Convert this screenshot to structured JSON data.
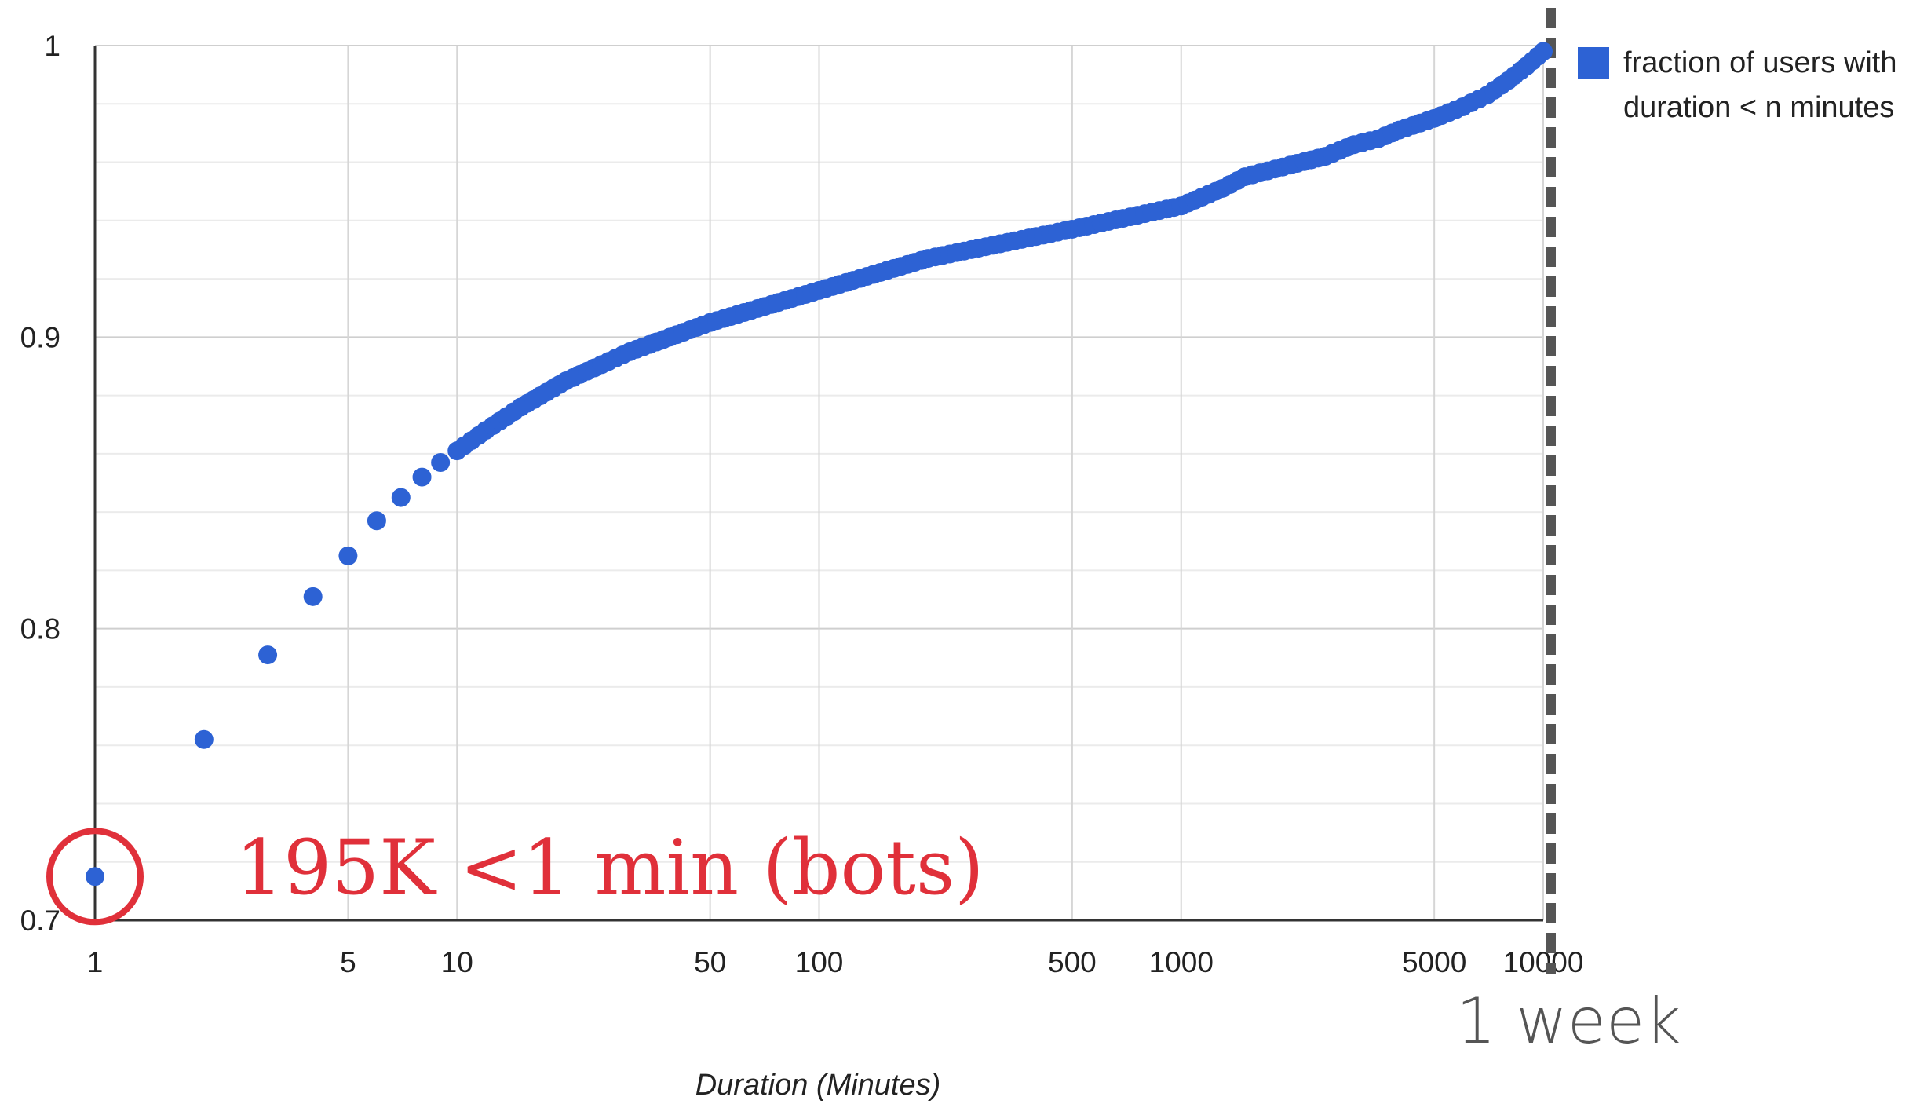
{
  "chart_data": {
    "type": "scatter",
    "title": "",
    "xlabel": "Duration (Minutes)",
    "ylabel": "",
    "x_scale": "log",
    "xlim": [
      1,
      10000
    ],
    "ylim": [
      0.7,
      1
    ],
    "y_ticks": [
      "0.7",
      "0.8",
      "0.9",
      "1"
    ],
    "x_ticks": [
      "1",
      "5",
      "10",
      "50",
      "100",
      "500",
      "1000",
      "5000",
      "10000"
    ],
    "grid": true,
    "legend_position": "top-right",
    "series": [
      {
        "name": "fraction of users with duration < n minutes",
        "color": "#2d62d4",
        "points": [
          [
            1,
            0.715
          ],
          [
            2,
            0.762
          ],
          [
            3,
            0.791
          ],
          [
            4,
            0.811
          ],
          [
            5,
            0.825
          ],
          [
            6,
            0.837
          ],
          [
            7,
            0.845
          ],
          [
            8,
            0.852
          ],
          [
            9,
            0.857
          ],
          [
            10,
            0.861
          ],
          [
            12,
            0.868
          ],
          [
            15,
            0.876
          ],
          [
            20,
            0.885
          ],
          [
            30,
            0.895
          ],
          [
            50,
            0.905
          ],
          [
            100,
            0.916
          ],
          [
            200,
            0.927
          ],
          [
            500,
            0.937
          ],
          [
            1000,
            0.945
          ],
          [
            1300,
            0.951
          ],
          [
            1500,
            0.955
          ],
          [
            2000,
            0.959
          ],
          [
            2500,
            0.962
          ],
          [
            3000,
            0.966
          ],
          [
            3500,
            0.968
          ],
          [
            4000,
            0.971
          ],
          [
            5000,
            0.975
          ],
          [
            6000,
            0.979
          ],
          [
            7000,
            0.983
          ],
          [
            8000,
            0.988
          ],
          [
            9000,
            0.993
          ],
          [
            10000,
            0.998
          ]
        ]
      }
    ],
    "legend_lines": [
      "fraction of users with",
      "duration < n minutes"
    ],
    "annotations": [
      {
        "text": "195K <1 min (bots)",
        "x": 1,
        "y": 0.715,
        "color": "#e0303a"
      },
      {
        "text": "1 week",
        "x": 10000,
        "color": "#555555"
      }
    ]
  }
}
